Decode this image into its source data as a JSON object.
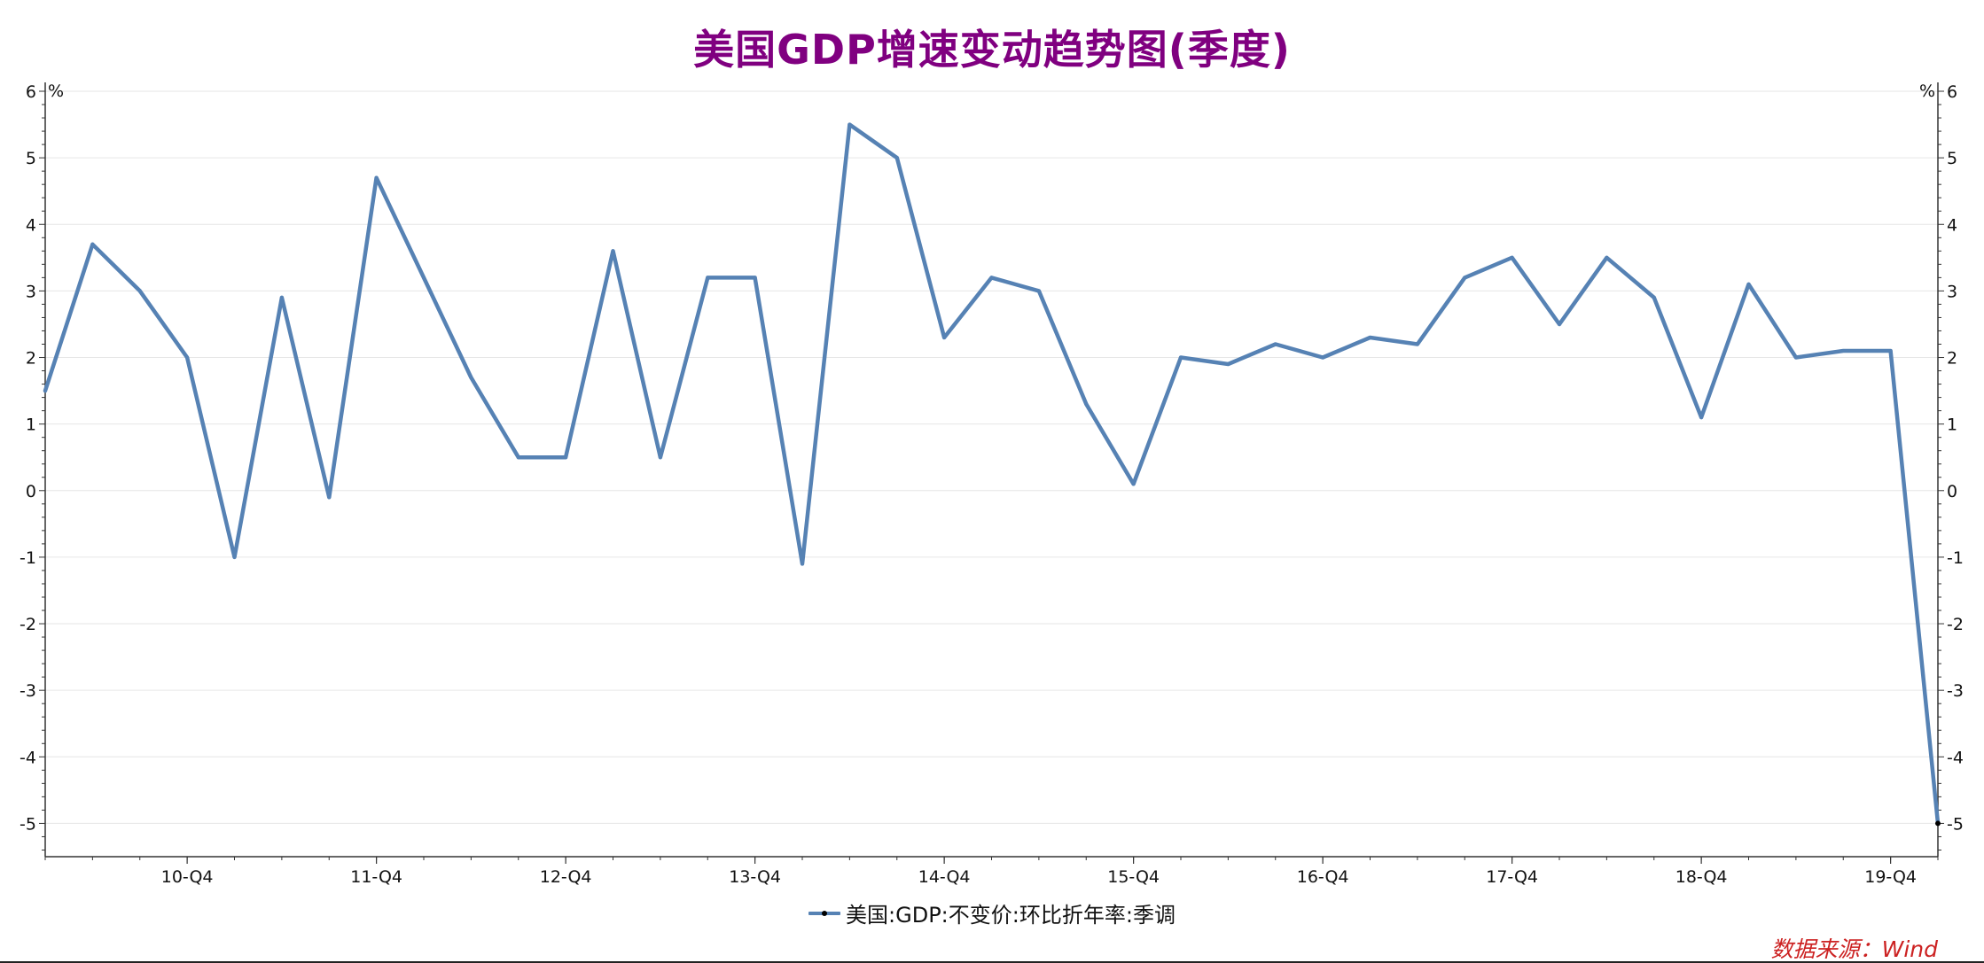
{
  "colors": {
    "title": "#800080",
    "series": "#5682B4",
    "source": "#cc2222",
    "axis": "#333333",
    "grid": "#e6e6e6"
  },
  "chart_data": {
    "type": "line",
    "title": "美国GDP增速变动趋势图(季度)",
    "y_unit_left": "%",
    "y_unit_right": "%",
    "ylim": [
      -5.5,
      6
    ],
    "yticks": [
      6,
      5,
      4,
      3,
      2,
      1,
      0,
      -1,
      -2,
      -3,
      -4,
      -5
    ],
    "y_tick_labels": [
      "6",
      "5",
      "4",
      "3",
      "2",
      "1",
      "0",
      "-1",
      "-2",
      "-3",
      "-4",
      "-5"
    ],
    "grid": true,
    "dual_y_axis": true,
    "x_tick_labels": [
      "10-Q4",
      "11-Q4",
      "12-Q4",
      "13-Q4",
      "14-Q4",
      "15-Q4",
      "16-Q4",
      "17-Q4",
      "18-Q4",
      "19-Q4"
    ],
    "x_tick_label_quarters": [
      "2010-Q4",
      "2011-Q4",
      "2012-Q4",
      "2013-Q4",
      "2014-Q4",
      "2015-Q4",
      "2016-Q4",
      "2017-Q4",
      "2018-Q4",
      "2019-Q4"
    ],
    "x": [
      "2010-Q1",
      "2010-Q2",
      "2010-Q3",
      "2010-Q4",
      "2011-Q1",
      "2011-Q2",
      "2011-Q3",
      "2011-Q4",
      "2012-Q1",
      "2012-Q2",
      "2012-Q3",
      "2012-Q4",
      "2013-Q1",
      "2013-Q2",
      "2013-Q3",
      "2013-Q4",
      "2014-Q1",
      "2014-Q2",
      "2014-Q3",
      "2014-Q4",
      "2015-Q1",
      "2015-Q2",
      "2015-Q3",
      "2015-Q4",
      "2016-Q1",
      "2016-Q2",
      "2016-Q3",
      "2016-Q4",
      "2017-Q1",
      "2017-Q2",
      "2017-Q3",
      "2017-Q4",
      "2018-Q1",
      "2018-Q2",
      "2018-Q3",
      "2018-Q4",
      "2019-Q1",
      "2019-Q2",
      "2019-Q3",
      "2019-Q4",
      "2020-Q1"
    ],
    "series": [
      {
        "name": "美国:GDP:不变价:环比折年率:季调",
        "values": [
          1.5,
          3.7,
          3.0,
          2.0,
          -1.0,
          2.9,
          -0.1,
          4.7,
          3.2,
          1.7,
          0.5,
          0.5,
          3.6,
          0.5,
          3.2,
          3.2,
          -1.1,
          5.5,
          5.0,
          2.3,
          3.2,
          3.0,
          1.3,
          0.1,
          2.0,
          1.9,
          2.2,
          2.0,
          2.3,
          2.2,
          3.2,
          3.5,
          2.5,
          3.5,
          2.9,
          1.1,
          3.1,
          2.0,
          2.1,
          2.1,
          -5.0
        ]
      }
    ],
    "legend_position": "bottom-center"
  },
  "footer": {
    "source_note": "数据来源：Wind"
  }
}
